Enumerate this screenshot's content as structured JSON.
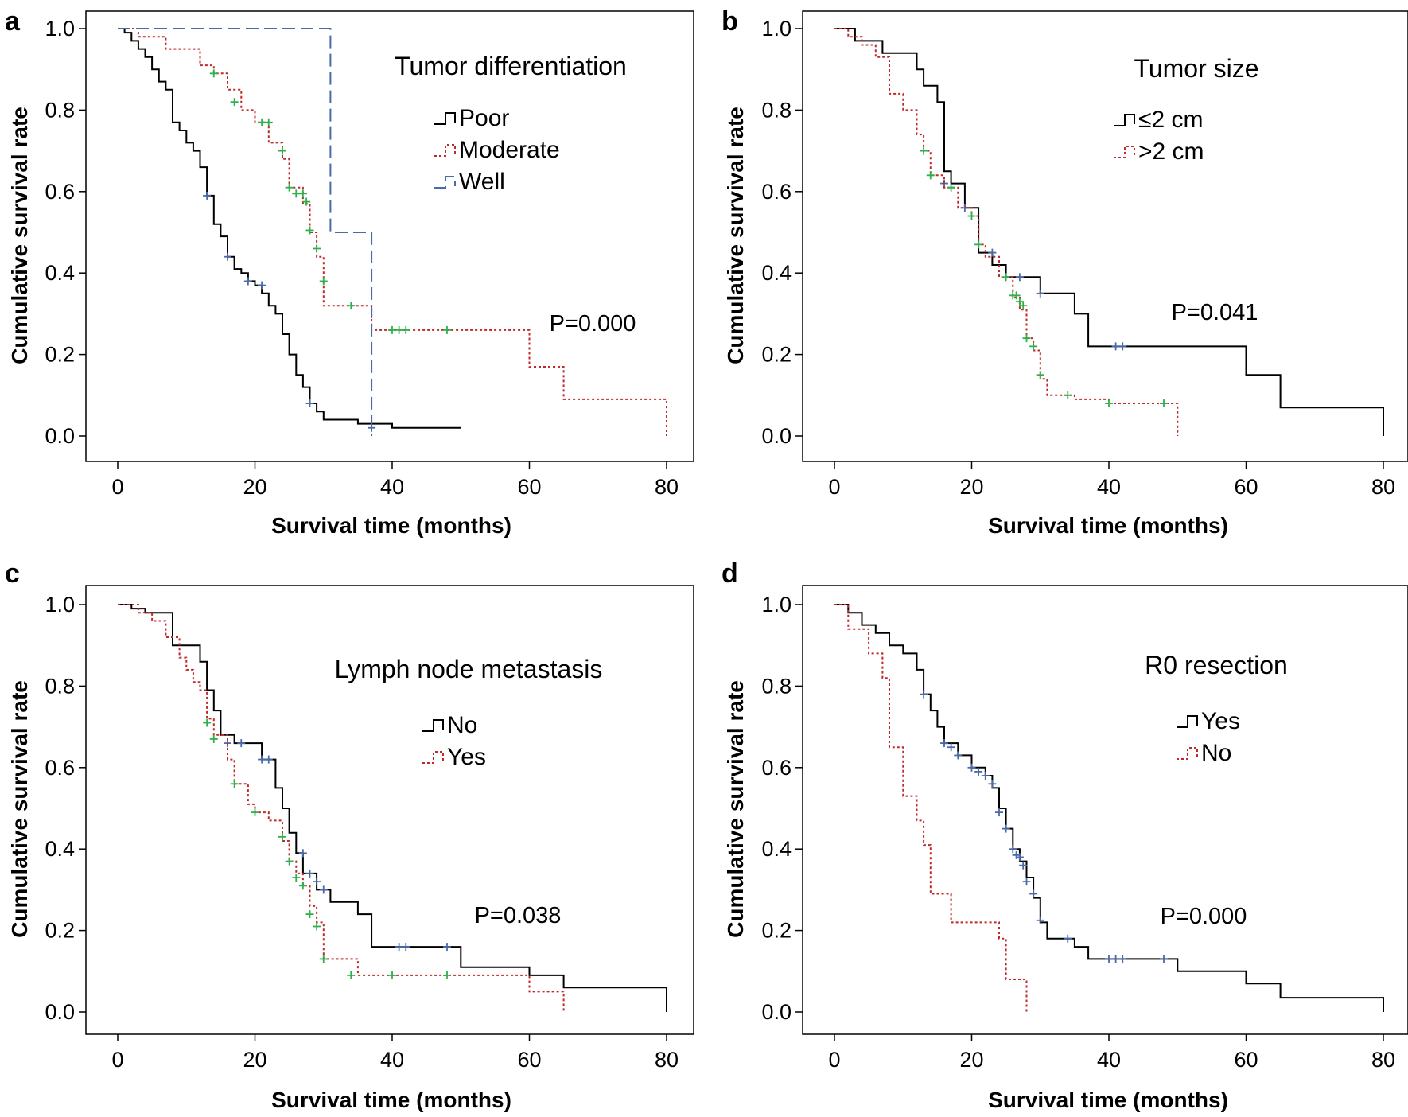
{
  "chart_data": [
    {
      "type": "line",
      "panel": "a",
      "xlabel": "Survival time (months)",
      "ylabel": "Cumulative survival rate",
      "xlim": [
        0,
        80
      ],
      "ylim": [
        0,
        1
      ],
      "xticks": [
        "0",
        "20",
        "40",
        "60",
        "80"
      ],
      "yticks": [
        "0.0",
        "0.2",
        "0.4",
        "0.6",
        "0.8",
        "1.0"
      ],
      "legend_title": "Tumor differentiation",
      "legend_position": "top-right",
      "annotation": "P=0.000",
      "grid": false,
      "series": [
        {
          "name": "Poor",
          "color": "#000000",
          "dash": "solid",
          "x": [
            0,
            1,
            2,
            3,
            4,
            5,
            6,
            7,
            8,
            9,
            10,
            11,
            12,
            13,
            14,
            15,
            16,
            17,
            18,
            19,
            20,
            21,
            22,
            23,
            24,
            25,
            26,
            27,
            28,
            29,
            30,
            35,
            40,
            50
          ],
          "y": [
            1.0,
            0.99,
            0.97,
            0.95,
            0.93,
            0.9,
            0.87,
            0.85,
            0.77,
            0.75,
            0.72,
            0.7,
            0.66,
            0.59,
            0.52,
            0.49,
            0.44,
            0.41,
            0.4,
            0.38,
            0.37,
            0.35,
            0.32,
            0.3,
            0.25,
            0.2,
            0.15,
            0.12,
            0.08,
            0.06,
            0.04,
            0.03,
            0.02,
            0.02
          ],
          "censored": [
            [
              13,
              0.59
            ],
            [
              16,
              0.44
            ],
            [
              19,
              0.38
            ],
            [
              21,
              0.37
            ],
            [
              28,
              0.08
            ],
            [
              37,
              0.02
            ]
          ]
        },
        {
          "name": "Moderate",
          "color": "#c0282a",
          "dash": "dotted",
          "x": [
            0,
            3,
            7,
            12,
            14,
            16,
            18,
            20,
            22,
            24,
            25,
            27,
            28,
            29,
            30,
            37,
            60,
            65,
            80
          ],
          "y": [
            1.0,
            0.98,
            0.95,
            0.91,
            0.89,
            0.85,
            0.8,
            0.77,
            0.72,
            0.68,
            0.61,
            0.57,
            0.5,
            0.44,
            0.32,
            0.26,
            0.17,
            0.09,
            0.0
          ],
          "censored": [
            [
              14,
              0.89
            ],
            [
              17,
              0.82
            ],
            [
              21,
              0.77
            ],
            [
              22,
              0.77
            ],
            [
              24,
              0.7
            ],
            [
              25,
              0.61
            ],
            [
              26,
              0.595
            ],
            [
              27,
              0.595
            ],
            [
              27.5,
              0.575
            ],
            [
              28,
              0.505
            ],
            [
              29,
              0.46
            ],
            [
              30,
              0.38
            ],
            [
              34,
              0.32
            ],
            [
              40,
              0.26
            ],
            [
              41,
              0.26
            ],
            [
              42,
              0.26
            ],
            [
              48,
              0.26
            ]
          ]
        },
        {
          "name": "Well",
          "color": "#4b6aa8",
          "dash": "dashed",
          "x": [
            0,
            31,
            37
          ],
          "y": [
            1.0,
            0.5,
            0.0
          ],
          "censored": []
        }
      ]
    },
    {
      "type": "line",
      "panel": "b",
      "xlabel": "Survival time (months)",
      "ylabel": "Cumulative survival rate",
      "xlim": [
        0,
        80
      ],
      "ylim": [
        0,
        1
      ],
      "xticks": [
        "0",
        "20",
        "40",
        "60",
        "80"
      ],
      "yticks": [
        "0.0",
        "0.2",
        "0.4",
        "0.6",
        "0.8",
        "1.0"
      ],
      "legend_title": "Tumor size",
      "legend_position": "top-right",
      "annotation": "P=0.041",
      "grid": false,
      "series": [
        {
          "name": "≤2 cm",
          "color": "#000000",
          "dash": "solid",
          "x": [
            0,
            3,
            7,
            12,
            13,
            15,
            16,
            17,
            19,
            21,
            23,
            25,
            30,
            35,
            37,
            60,
            65,
            80
          ],
          "y": [
            1.0,
            0.97,
            0.94,
            0.9,
            0.86,
            0.82,
            0.65,
            0.62,
            0.56,
            0.45,
            0.42,
            0.39,
            0.35,
            0.3,
            0.22,
            0.15,
            0.07,
            0.0
          ],
          "censored": [
            [
              16,
              0.62
            ],
            [
              19,
              0.56
            ],
            [
              23,
              0.45
            ],
            [
              27,
              0.39
            ],
            [
              30,
              0.35
            ],
            [
              41,
              0.22
            ],
            [
              42,
              0.22
            ]
          ]
        },
        {
          "name": ">2 cm",
          "color": "#c0282a",
          "dash": "dotted",
          "x": [
            0,
            2,
            4,
            6,
            8,
            10,
            12,
            13,
            14,
            16,
            18,
            20,
            21,
            22,
            24,
            26,
            27,
            28,
            29,
            30,
            31,
            35,
            40,
            50
          ],
          "y": [
            1.0,
            0.98,
            0.96,
            0.93,
            0.84,
            0.8,
            0.74,
            0.7,
            0.64,
            0.61,
            0.56,
            0.54,
            0.47,
            0.44,
            0.39,
            0.34,
            0.31,
            0.24,
            0.21,
            0.14,
            0.1,
            0.09,
            0.08,
            0.0
          ],
          "censored": [
            [
              13,
              0.7
            ],
            [
              14,
              0.64
            ],
            [
              17,
              0.61
            ],
            [
              20,
              0.54
            ],
            [
              21,
              0.47
            ],
            [
              25,
              0.39
            ],
            [
              26,
              0.345
            ],
            [
              26.5,
              0.345
            ],
            [
              27,
              0.33
            ],
            [
              27.5,
              0.32
            ],
            [
              28,
              0.24
            ],
            [
              29,
              0.22
            ],
            [
              30,
              0.15
            ],
            [
              34,
              0.1
            ],
            [
              40,
              0.08
            ],
            [
              48,
              0.08
            ]
          ]
        }
      ]
    },
    {
      "type": "line",
      "panel": "c",
      "xlabel": "Survival time (months)",
      "ylabel": "Cumulative survival rate",
      "xlim": [
        0,
        80
      ],
      "ylim": [
        0,
        1
      ],
      "xticks": [
        "0",
        "20",
        "40",
        "60",
        "80"
      ],
      "yticks": [
        "0.0",
        "0.2",
        "0.4",
        "0.6",
        "0.8",
        "1.0"
      ],
      "legend_title": "Lymph node metastasis",
      "legend_position": "top-right",
      "annotation": "P=0.038",
      "grid": false,
      "series": [
        {
          "name": "No",
          "color": "#000000",
          "dash": "solid",
          "x": [
            0,
            2,
            4,
            8,
            12,
            13,
            14,
            15,
            17,
            21,
            23,
            24,
            25,
            26,
            27,
            29,
            31,
            35,
            37,
            50,
            60,
            65,
            80
          ],
          "y": [
            1.0,
            0.99,
            0.98,
            0.9,
            0.86,
            0.79,
            0.74,
            0.68,
            0.66,
            0.62,
            0.55,
            0.5,
            0.44,
            0.39,
            0.34,
            0.3,
            0.27,
            0.24,
            0.16,
            0.11,
            0.09,
            0.06,
            0.0
          ],
          "censored": [
            [
              16,
              0.66
            ],
            [
              18,
              0.66
            ],
            [
              21,
              0.62
            ],
            [
              22,
              0.62
            ],
            [
              27,
              0.39
            ],
            [
              28,
              0.34
            ],
            [
              29,
              0.32
            ],
            [
              30,
              0.3
            ],
            [
              41,
              0.16
            ],
            [
              42,
              0.16
            ],
            [
              48,
              0.16
            ]
          ]
        },
        {
          "name": "Yes",
          "color": "#c0282a",
          "dash": "dotted",
          "x": [
            0,
            3,
            5,
            7,
            9,
            10,
            11,
            12,
            13,
            14,
            16,
            17,
            19,
            20,
            22,
            24,
            25,
            26,
            27,
            28,
            29,
            30,
            35,
            60,
            65
          ],
          "y": [
            1.0,
            0.98,
            0.96,
            0.92,
            0.87,
            0.84,
            0.81,
            0.79,
            0.72,
            0.68,
            0.62,
            0.56,
            0.51,
            0.49,
            0.47,
            0.42,
            0.37,
            0.34,
            0.31,
            0.26,
            0.22,
            0.13,
            0.09,
            0.05,
            0.0
          ],
          "censored": [
            [
              13,
              0.71
            ],
            [
              14,
              0.67
            ],
            [
              17,
              0.56
            ],
            [
              20,
              0.49
            ],
            [
              24,
              0.43
            ],
            [
              25,
              0.37
            ],
            [
              26,
              0.33
            ],
            [
              27,
              0.31
            ],
            [
              28,
              0.24
            ],
            [
              29,
              0.21
            ],
            [
              30,
              0.13
            ],
            [
              34,
              0.09
            ],
            [
              40,
              0.09
            ],
            [
              48,
              0.09
            ]
          ]
        }
      ]
    },
    {
      "type": "line",
      "panel": "d",
      "xlabel": "Survival time (months)",
      "ylabel": "Cumulative survival rate",
      "xlim": [
        0,
        80
      ],
      "ylim": [
        0,
        1
      ],
      "xticks": [
        "0",
        "20",
        "40",
        "60",
        "80"
      ],
      "yticks": [
        "0.0",
        "0.2",
        "0.4",
        "0.6",
        "0.8",
        "1.0"
      ],
      "legend_title": "R0 resection",
      "legend_position": "top-right",
      "annotation": "P=0.000",
      "grid": false,
      "series": [
        {
          "name": "Yes",
          "color": "#000000",
          "dash": "solid",
          "x": [
            0,
            2,
            4,
            6,
            8,
            10,
            12,
            13,
            14,
            15,
            16,
            18,
            20,
            22,
            23,
            24,
            25,
            26,
            27,
            28,
            29,
            30,
            31,
            35,
            37,
            50,
            60,
            65,
            80
          ],
          "y": [
            1.0,
            0.98,
            0.95,
            0.93,
            0.9,
            0.88,
            0.84,
            0.78,
            0.74,
            0.7,
            0.66,
            0.63,
            0.6,
            0.58,
            0.55,
            0.5,
            0.45,
            0.4,
            0.37,
            0.33,
            0.28,
            0.22,
            0.18,
            0.16,
            0.13,
            0.1,
            0.07,
            0.035,
            0.0
          ],
          "censored": [
            [
              13,
              0.78
            ],
            [
              16,
              0.66
            ],
            [
              17,
              0.65
            ],
            [
              18,
              0.63
            ],
            [
              20,
              0.6
            ],
            [
              21,
              0.59
            ],
            [
              22,
              0.58
            ],
            [
              23,
              0.56
            ],
            [
              24,
              0.49
            ],
            [
              25,
              0.45
            ],
            [
              26,
              0.4
            ],
            [
              26.5,
              0.385
            ],
            [
              27,
              0.38
            ],
            [
              27.5,
              0.36
            ],
            [
              28,
              0.32
            ],
            [
              29,
              0.29
            ],
            [
              30,
              0.225
            ],
            [
              34,
              0.18
            ],
            [
              40,
              0.13
            ],
            [
              41,
              0.13
            ],
            [
              42,
              0.13
            ],
            [
              48,
              0.13
            ]
          ]
        },
        {
          "name": "No",
          "color": "#c0282a",
          "dash": "dotted",
          "x": [
            0,
            2,
            5,
            7,
            8,
            10,
            12,
            13,
            14,
            17,
            24,
            25,
            28
          ],
          "y": [
            1.0,
            0.94,
            0.88,
            0.82,
            0.65,
            0.53,
            0.47,
            0.41,
            0.29,
            0.22,
            0.18,
            0.08,
            0.0
          ],
          "censored": []
        }
      ]
    }
  ]
}
